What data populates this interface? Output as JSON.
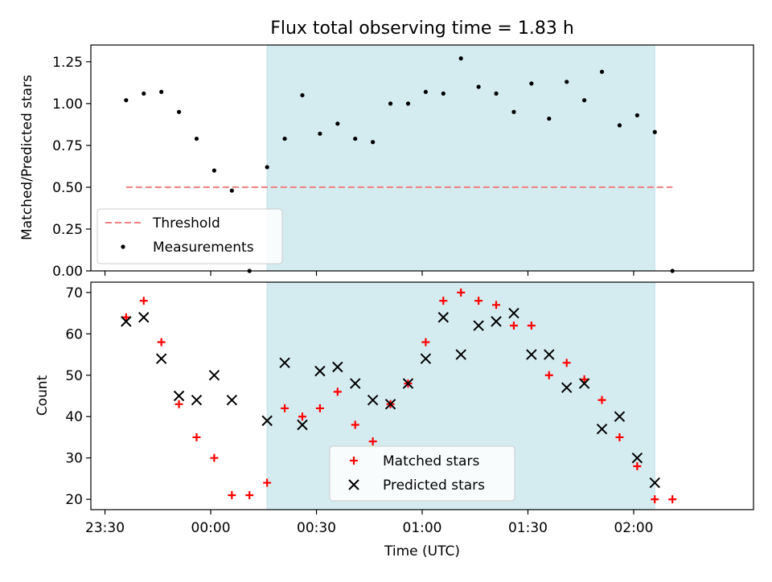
{
  "chart_data": [
    {
      "type": "scatter",
      "title": "Flux total observing time = 1.83 h",
      "xlabel": "",
      "ylabel": "Matched/Predicted stars",
      "ylim": [
        0,
        1.35
      ],
      "xlim": [
        "23:26",
        "02:34"
      ],
      "yticks": [
        "0.00",
        "0.25",
        "0.50",
        "0.75",
        "1.00",
        "1.25"
      ],
      "shaded_region": [
        "00:16",
        "02:06"
      ],
      "shade_color": "#d4ebf0",
      "legend_position": "lower-left",
      "threshold": {
        "name": "Threshold",
        "value": 0.5,
        "x_start": "23:36",
        "x_end": "02:11",
        "color": "#f08080"
      },
      "series": [
        {
          "name": "Measurements",
          "color": "#000000",
          "x": [
            "23:36",
            "23:41",
            "23:46",
            "23:51",
            "23:56",
            "00:01",
            "00:06",
            "00:11",
            "00:16",
            "00:21",
            "00:26",
            "00:31",
            "00:36",
            "00:41",
            "00:46",
            "00:51",
            "00:56",
            "01:01",
            "01:06",
            "01:11",
            "01:16",
            "01:21",
            "01:26",
            "01:31",
            "01:36",
            "01:41",
            "01:46",
            "01:51",
            "01:56",
            "02:01",
            "02:06",
            "02:11"
          ],
          "y": [
            1.02,
            1.06,
            1.07,
            0.95,
            0.79,
            0.6,
            0.48,
            0.0,
            0.62,
            0.79,
            1.05,
            0.82,
            0.88,
            0.79,
            0.77,
            1.0,
            1.0,
            1.07,
            1.06,
            1.27,
            1.1,
            1.06,
            0.95,
            1.12,
            0.91,
            1.13,
            1.02,
            1.19,
            0.87,
            0.93,
            0.83,
            0.0
          ]
        }
      ]
    },
    {
      "type": "scatter",
      "title": "",
      "xlabel": "Time (UTC)",
      "ylabel": "Count",
      "ylim": [
        17.5,
        72.5
      ],
      "xlim": [
        "23:26",
        "02:34"
      ],
      "yticks": [
        "20",
        "30",
        "40",
        "50",
        "60",
        "70"
      ],
      "xticks": [
        "23:30",
        "00:00",
        "00:30",
        "01:00",
        "01:30",
        "02:00"
      ],
      "shaded_region": [
        "00:16",
        "02:06"
      ],
      "shade_color": "#d4ebf0",
      "legend_position": "lower-center",
      "series": [
        {
          "name": "Matched stars",
          "marker": "+",
          "color": "#ff0000",
          "x": [
            "23:36",
            "23:41",
            "23:46",
            "23:51",
            "23:56",
            "00:01",
            "00:06",
            "00:11",
            "00:16",
            "00:21",
            "00:26",
            "00:31",
            "00:36",
            "00:41",
            "00:46",
            "00:51",
            "00:56",
            "01:01",
            "01:06",
            "01:11",
            "01:16",
            "01:21",
            "01:26",
            "01:31",
            "01:36",
            "01:41",
            "01:46",
            "01:51",
            "01:56",
            "02:01",
            "02:06",
            "02:11"
          ],
          "y": [
            64,
            68,
            58,
            43,
            35,
            30,
            21,
            21,
            24,
            42,
            40,
            42,
            46,
            38,
            34,
            43,
            48,
            58,
            68,
            70,
            68,
            67,
            62,
            62,
            50,
            53,
            49,
            44,
            35,
            28,
            20,
            20
          ]
        },
        {
          "name": "Predicted stars",
          "marker": "x",
          "color": "#000000",
          "x": [
            "23:36",
            "23:41",
            "23:46",
            "23:51",
            "23:56",
            "00:01",
            "00:06",
            "00:16",
            "00:21",
            "00:26",
            "00:31",
            "00:36",
            "00:41",
            "00:46",
            "00:51",
            "00:56",
            "01:01",
            "01:06",
            "01:11",
            "01:16",
            "01:21",
            "01:26",
            "01:31",
            "01:36",
            "01:41",
            "01:46",
            "01:51",
            "01:56",
            "02:01",
            "02:06"
          ],
          "y": [
            63,
            64,
            54,
            45,
            44,
            50,
            44,
            39,
            53,
            38,
            51,
            52,
            48,
            44,
            43,
            48,
            54,
            64,
            55,
            62,
            63,
            65,
            55,
            55,
            47,
            48,
            37,
            40,
            30,
            24
          ]
        }
      ]
    }
  ]
}
